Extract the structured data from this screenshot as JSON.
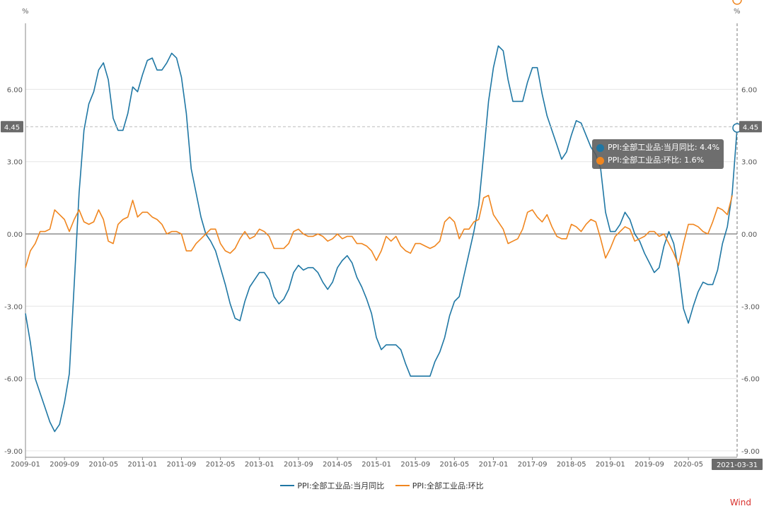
{
  "chart_data": {
    "type": "line",
    "x_start": "2009-01",
    "x_end": "2021-03",
    "x_tick_labels": [
      "2009-01",
      "2009-09",
      "2010-05",
      "2011-01",
      "2011-09",
      "2012-05",
      "2013-01",
      "2013-09",
      "2014-05",
      "2015-01",
      "2015-09",
      "2016-05",
      "2017-01",
      "2017-09",
      "2018-05",
      "2019-01",
      "2019-09",
      "2020-05"
    ],
    "y_tick_labels": [
      "6.00",
      "3.00",
      "0.00",
      "-3.00",
      "-6.00",
      "-9.00"
    ],
    "y_unit": "%",
    "ylim": [
      -9,
      9
    ],
    "grid": true,
    "legend_position": "bottom-center",
    "series": [
      {
        "name": "PPI:全部工业品:当月同比",
        "color": "#1f77a4",
        "values": [
          -3.3,
          -4.5,
          -6.0,
          -6.6,
          -7.2,
          -7.8,
          -8.2,
          -7.9,
          -7.0,
          -5.8,
          -2.1,
          1.7,
          4.3,
          5.4,
          5.9,
          6.8,
          7.1,
          6.4,
          4.8,
          4.3,
          4.3,
          5.0,
          6.1,
          5.9,
          6.6,
          7.2,
          7.3,
          6.8,
          6.8,
          7.1,
          7.5,
          7.3,
          6.5,
          5.0,
          2.7,
          1.7,
          0.7,
          0.0,
          -0.3,
          -0.7,
          -1.4,
          -2.1,
          -2.9,
          -3.5,
          -3.6,
          -2.8,
          -2.2,
          -1.9,
          -1.6,
          -1.6,
          -1.9,
          -2.6,
          -2.9,
          -2.7,
          -2.3,
          -1.6,
          -1.3,
          -1.5,
          -1.4,
          -1.4,
          -1.6,
          -2.0,
          -2.3,
          -2.0,
          -1.4,
          -1.1,
          -0.9,
          -1.2,
          -1.8,
          -2.2,
          -2.7,
          -3.3,
          -4.3,
          -4.8,
          -4.6,
          -4.6,
          -4.6,
          -4.8,
          -5.4,
          -5.9,
          -5.9,
          -5.9,
          -5.9,
          -5.9,
          -5.3,
          -4.9,
          -4.3,
          -3.4,
          -2.8,
          -2.6,
          -1.7,
          -0.8,
          0.1,
          1.2,
          3.3,
          5.5,
          6.9,
          7.8,
          7.6,
          6.4,
          5.5,
          5.5,
          5.5,
          6.3,
          6.9,
          6.9,
          5.8,
          4.9,
          4.3,
          3.7,
          3.1,
          3.4,
          4.1,
          4.7,
          4.6,
          4.1,
          3.6,
          3.3,
          2.7,
          0.9,
          0.1,
          0.1,
          0.4,
          0.9,
          0.6,
          0.0,
          -0.3,
          -0.8,
          -1.2,
          -1.6,
          -1.4,
          -0.5,
          0.1,
          -0.4,
          -1.5,
          -3.1,
          -3.7,
          -3.0,
          -2.4,
          -2.0,
          -2.1,
          -2.1,
          -1.5,
          -0.4,
          0.3,
          1.7,
          4.4
        ]
      },
      {
        "name": "PPI:全部工业品:环比",
        "color": "#f0861f",
        "values": [
          -1.4,
          -0.7,
          -0.4,
          0.1,
          0.1,
          0.2,
          1.0,
          0.8,
          0.6,
          0.1,
          0.6,
          1.0,
          0.5,
          0.4,
          0.5,
          1.0,
          0.6,
          -0.3,
          -0.4,
          0.4,
          0.6,
          0.7,
          1.4,
          0.7,
          0.9,
          0.9,
          0.7,
          0.6,
          0.4,
          0.0,
          0.1,
          0.1,
          0.0,
          -0.7,
          -0.7,
          -0.4,
          -0.2,
          0.0,
          0.2,
          0.2,
          -0.4,
          -0.7,
          -0.8,
          -0.6,
          -0.2,
          0.1,
          -0.2,
          -0.1,
          0.2,
          0.1,
          -0.1,
          -0.6,
          -0.6,
          -0.6,
          -0.4,
          0.1,
          0.2,
          0.0,
          -0.1,
          -0.1,
          0.0,
          -0.1,
          -0.3,
          -0.2,
          0.0,
          -0.2,
          -0.1,
          -0.1,
          -0.4,
          -0.4,
          -0.5,
          -0.7,
          -1.1,
          -0.7,
          -0.1,
          -0.3,
          -0.1,
          -0.5,
          -0.7,
          -0.8,
          -0.4,
          -0.4,
          -0.5,
          -0.6,
          -0.5,
          -0.3,
          0.5,
          0.7,
          0.5,
          -0.2,
          0.2,
          0.2,
          0.5,
          0.6,
          1.5,
          1.6,
          0.8,
          0.5,
          0.2,
          -0.4,
          -0.3,
          -0.2,
          0.2,
          0.9,
          1.0,
          0.7,
          0.5,
          0.8,
          0.3,
          -0.1,
          -0.2,
          -0.2,
          0.4,
          0.3,
          0.1,
          0.4,
          0.6,
          0.5,
          -0.2,
          -1.0,
          -0.6,
          -0.1,
          0.1,
          0.3,
          0.2,
          -0.3,
          -0.2,
          -0.1,
          0.1,
          0.1,
          -0.1,
          0.0,
          -0.4,
          -0.8,
          -1.3,
          -0.4,
          0.4,
          0.4,
          0.3,
          0.1,
          0.0,
          0.5,
          1.1,
          1.0,
          0.8,
          1.6
        ]
      }
    ],
    "crosshair_label_x": "2021-03-31",
    "crosshair_label_y": "4.45"
  },
  "tooltip": {
    "row1": "PPI:全部工业品:当月同比: 4.4%",
    "row2": "PPI:全部工业品:环比: 1.6%"
  },
  "legend": {
    "item1": "PPI:全部工业品:当月同比",
    "item2": "PPI:全部工业品:环比"
  },
  "brand": "Wind",
  "colors": {
    "grid": "#e6e6e6",
    "axis": "#888888",
    "label_bg": "#6b6b6b"
  }
}
